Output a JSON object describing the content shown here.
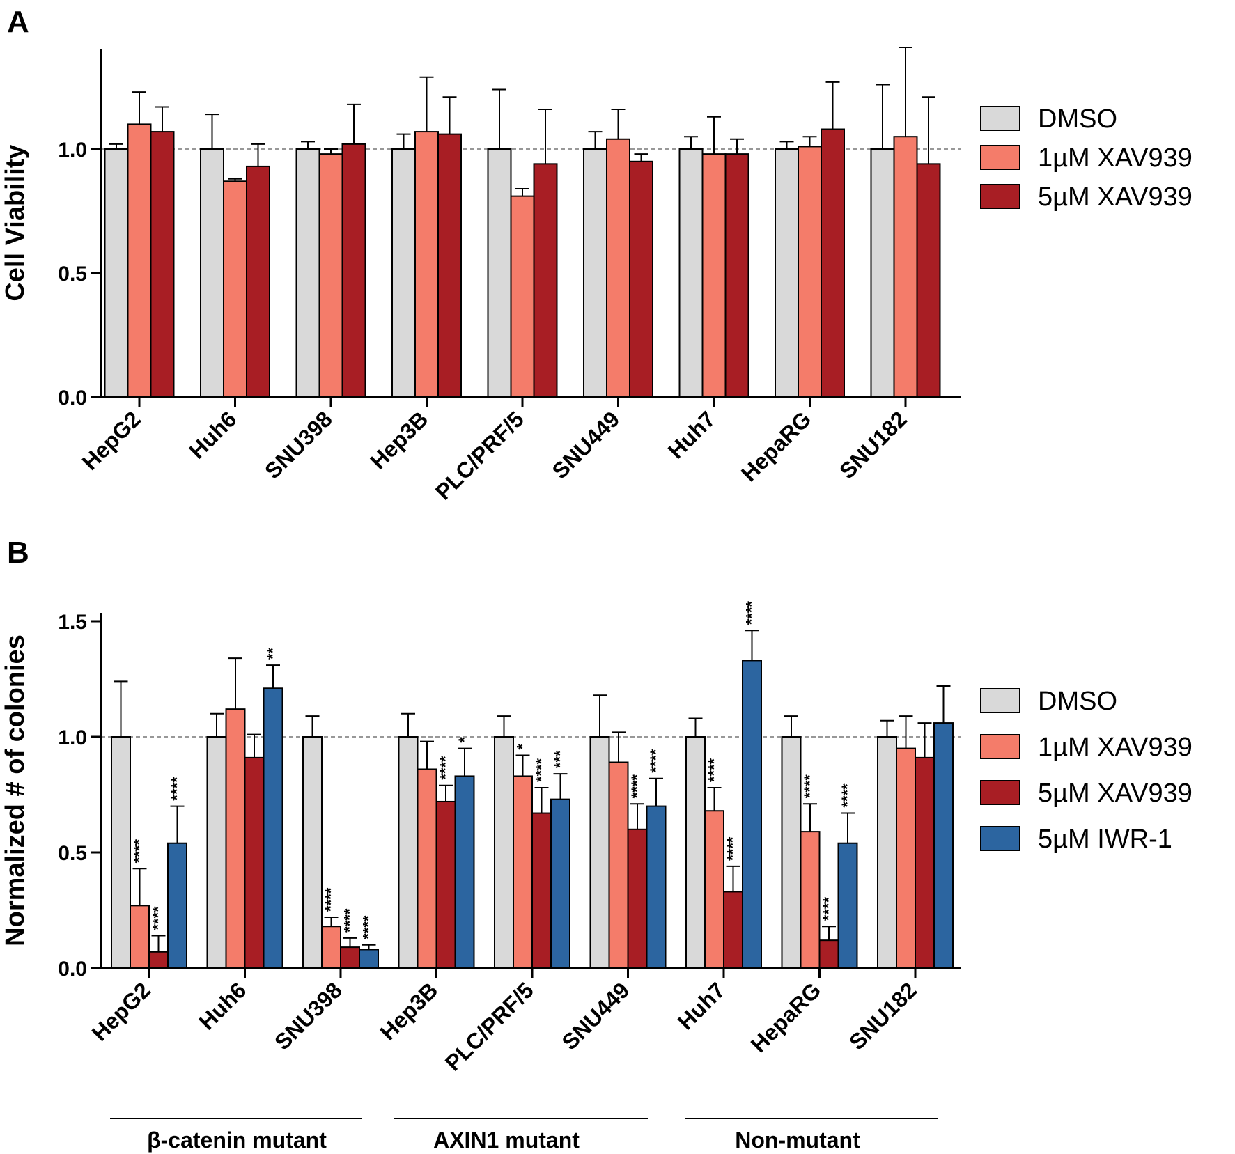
{
  "panels": [
    {
      "letter": "A"
    },
    {
      "letter": "B"
    }
  ],
  "groups": [
    {
      "label": "β-catenin mutant"
    },
    {
      "label": "AXIN1 mutant"
    },
    {
      "label": "Non-mutant"
    }
  ],
  "chart_data": [
    {
      "type": "bar",
      "title": "",
      "ylabel": "Cell Viability",
      "xlabel": "",
      "ylim": [
        0,
        1.4
      ],
      "yticks": [
        "0.0",
        "0.5",
        "1.0"
      ],
      "ytick_values": [
        0,
        0.5,
        1.0
      ],
      "reference_line": 1.0,
      "categories": [
        "HepG2",
        "Huh6",
        "SNU398",
        "Hep3B",
        "PLC/PRF/5",
        "SNU449",
        "Huh7",
        "HepaRG",
        "SNU182"
      ],
      "series": [
        {
          "name": "DMSO",
          "color": "#d9d9d9",
          "values": [
            1.0,
            1.0,
            1.0,
            1.0,
            1.0,
            1.0,
            1.0,
            1.0,
            1.0
          ],
          "errors": [
            0.02,
            0.14,
            0.03,
            0.06,
            0.24,
            0.07,
            0.05,
            0.03,
            0.26
          ]
        },
        {
          "name": "1µM XAV939",
          "color": "#f47c6a",
          "values": [
            1.1,
            0.87,
            0.98,
            1.07,
            0.81,
            1.04,
            0.98,
            1.01,
            1.05
          ],
          "errors": [
            0.13,
            0.01,
            0.02,
            0.22,
            0.03,
            0.12,
            0.15,
            0.04,
            0.36
          ]
        },
        {
          "name": "5µM XAV939",
          "color": "#a81e24",
          "values": [
            1.07,
            0.93,
            1.02,
            1.06,
            0.94,
            0.95,
            0.98,
            1.08,
            0.94
          ],
          "errors": [
            0.1,
            0.09,
            0.16,
            0.15,
            0.22,
            0.03,
            0.06,
            0.19,
            0.27
          ]
        }
      ]
    },
    {
      "type": "bar",
      "title": "",
      "ylabel": "Normalized # of colonies",
      "xlabel": "",
      "ylim": [
        0,
        1.5
      ],
      "yticks": [
        "0.0",
        "0.5",
        "1.0",
        "1.5"
      ],
      "ytick_values": [
        0,
        0.5,
        1.0,
        1.5
      ],
      "reference_line": 1.0,
      "categories": [
        "HepG2",
        "Huh6",
        "SNU398",
        "Hep3B",
        "PLC/PRF/5",
        "SNU449",
        "Huh7",
        "HepaRG",
        "SNU182"
      ],
      "series": [
        {
          "name": "DMSO",
          "color": "#d9d9d9",
          "values": [
            1.0,
            1.0,
            1.0,
            1.0,
            1.0,
            1.0,
            1.0,
            1.0,
            1.0
          ],
          "errors": [
            0.24,
            0.1,
            0.09,
            0.1,
            0.09,
            0.18,
            0.08,
            0.09,
            0.07
          ],
          "sig": [
            "",
            "",
            "",
            "",
            "",
            "",
            "",
            "",
            ""
          ]
        },
        {
          "name": "1µM XAV939",
          "color": "#f47c6a",
          "values": [
            0.27,
            1.12,
            0.18,
            0.86,
            0.83,
            0.89,
            0.68,
            0.59,
            0.95
          ],
          "errors": [
            0.16,
            0.22,
            0.04,
            0.12,
            0.09,
            0.13,
            0.1,
            0.12,
            0.14
          ],
          "sig": [
            "****",
            "",
            "****",
            "",
            "*",
            "",
            "****",
            "****",
            ""
          ]
        },
        {
          "name": "5µM XAV939",
          "color": "#a81e24",
          "values": [
            0.07,
            0.91,
            0.09,
            0.72,
            0.67,
            0.6,
            0.33,
            0.12,
            0.91
          ],
          "errors": [
            0.07,
            0.1,
            0.04,
            0.07,
            0.11,
            0.11,
            0.11,
            0.06,
            0.15
          ],
          "sig": [
            "****",
            "",
            "****",
            "****",
            "****",
            "****",
            "****",
            "****",
            ""
          ]
        },
        {
          "name": "5µM IWR-1",
          "color": "#2c65a0",
          "values": [
            0.54,
            1.21,
            0.08,
            0.83,
            0.73,
            0.7,
            1.33,
            0.54,
            1.06
          ],
          "errors": [
            0.16,
            0.1,
            0.02,
            0.12,
            0.11,
            0.12,
            0.13,
            0.13,
            0.16
          ],
          "sig": [
            "****",
            "**",
            "****",
            "*",
            "***",
            "****",
            "****",
            "****",
            ""
          ]
        }
      ]
    }
  ]
}
